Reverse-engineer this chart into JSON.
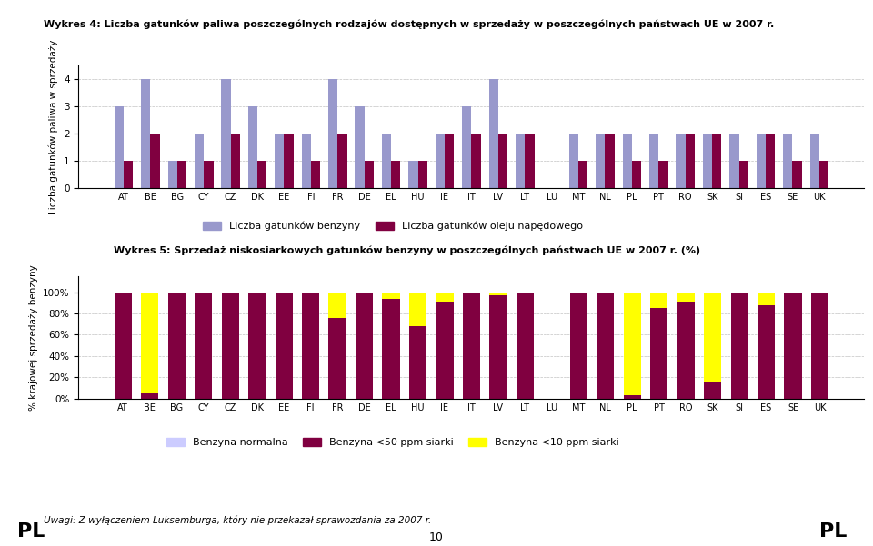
{
  "title1": "Wykres 4: Liczba gatunków paliwa poszczególnych rodzajów dostępnych w sprzedaży w poszczególnych państwach UE w 2007 r.",
  "title2": "Wykres 5: Sprzedaż niskosiarkowych gatunków benzyny w poszczególnych państwach UE w 2007 r. (%)",
  "countries": [
    "AT",
    "BE",
    "BG",
    "CY",
    "CZ",
    "DK",
    "EE",
    "FI",
    "FR",
    "DE",
    "EL",
    "HU",
    "IE",
    "IT",
    "LV",
    "LT",
    "LU",
    "MT",
    "NL",
    "PL",
    "PT",
    "RO",
    "SK",
    "SI",
    "ES",
    "SE",
    "UK"
  ],
  "benzyna": [
    3,
    4,
    1,
    2,
    4,
    3,
    2,
    2,
    4,
    3,
    2,
    1,
    2,
    3,
    4,
    2,
    0,
    2,
    2,
    2,
    2,
    2,
    2,
    2,
    2,
    2,
    2
  ],
  "olej": [
    1,
    2,
    1,
    1,
    2,
    1,
    2,
    1,
    2,
    1,
    1,
    1,
    2,
    2,
    2,
    2,
    0,
    1,
    2,
    1,
    1,
    2,
    2,
    1,
    2,
    1,
    1
  ],
  "normal": [
    0,
    0,
    0,
    0,
    0,
    0,
    0,
    0,
    0,
    0,
    0,
    0,
    0,
    0,
    0,
    0,
    0,
    0,
    0,
    0,
    0,
    0,
    0,
    0,
    0,
    0,
    0
  ],
  "lt50": [
    100,
    5,
    100,
    100,
    100,
    100,
    100,
    100,
    76,
    100,
    94,
    68,
    91,
    100,
    97,
    100,
    0,
    100,
    100,
    3,
    85,
    91,
    16,
    100,
    88,
    100,
    100
  ],
  "lt10": [
    0,
    95,
    0,
    0,
    0,
    0,
    0,
    0,
    24,
    0,
    6,
    32,
    9,
    0,
    3,
    0,
    0,
    0,
    0,
    97,
    15,
    9,
    84,
    0,
    12,
    0,
    0
  ],
  "ylabel1": "Liczba gatunków paliwa w sprzedaży",
  "ylabel2": "% krajowej sprzedaży benzyny",
  "legend1_benzyna": "Liczba gatunków benzyny",
  "legend1_olej": "Liczba gatunków oleju napędowego",
  "legend2_normal": "Benzyna normalna",
  "legend2_lt50": "Benzyna <50 ppm siarki",
  "legend2_lt10": "Benzyna <10 ppm siarki",
  "footnote": "Uwagi: Z wyłączeniem Luksemburga, który nie przekazał sprawozdania za 2007 r.",
  "color_benzyna": "#9999cc",
  "color_olej": "#800040",
  "color_normal": "#ccccff",
  "color_lt50": "#800040",
  "color_lt10": "#ffff00",
  "page_num": "10"
}
